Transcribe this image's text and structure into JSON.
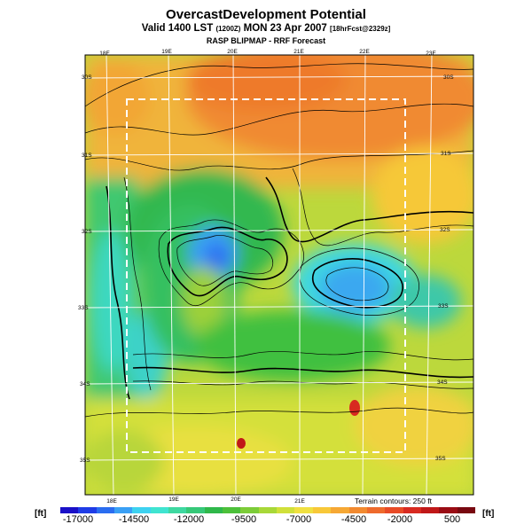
{
  "header": {
    "title": "OvercastDevelopment Potential",
    "valid_prefix": "Valid 1400 LST",
    "valid_utc": "(1200Z)",
    "valid_date": "MON 23 Apr 2007",
    "forecast_note": "[18hrFcst@2329z]",
    "subtitle": "RASP BLIPMAP - RRF Forecast"
  },
  "map": {
    "lon_labels_top": [
      "18E",
      "19E",
      "20E",
      "21E",
      "22E",
      "23E"
    ],
    "lon_labels_bottom": [
      "18E",
      "19E",
      "20E",
      "21E"
    ],
    "lat_labels_left": [
      "30S",
      "31S",
      "32S",
      "33S",
      "34S",
      "35S"
    ],
    "lat_labels_right": [
      "30S",
      "31S",
      "32S",
      "33S",
      "34S",
      "35S"
    ],
    "terrain_note": "Terrain contours: 250 ft"
  },
  "legend": {
    "unit_left": "[ft]",
    "unit_right": "[ft]",
    "ticks": [
      "-17000",
      "-14500",
      "-12000",
      "-9500",
      "-7000",
      "-4500",
      "-2000",
      "500"
    ],
    "colors": [
      "#1a10c8",
      "#1f3ce6",
      "#2a6df0",
      "#3aa0f5",
      "#3ed2f0",
      "#3fe4d0",
      "#3ed8a0",
      "#36c878",
      "#2fb84a",
      "#4cc03a",
      "#7ccc38",
      "#a8d838",
      "#d0e03a",
      "#f0e040",
      "#f8c838",
      "#f6a834",
      "#f28a30",
      "#ee6a2c",
      "#e84a26",
      "#d82a20",
      "#c01818",
      "#9a0c14",
      "#780810"
    ]
  }
}
